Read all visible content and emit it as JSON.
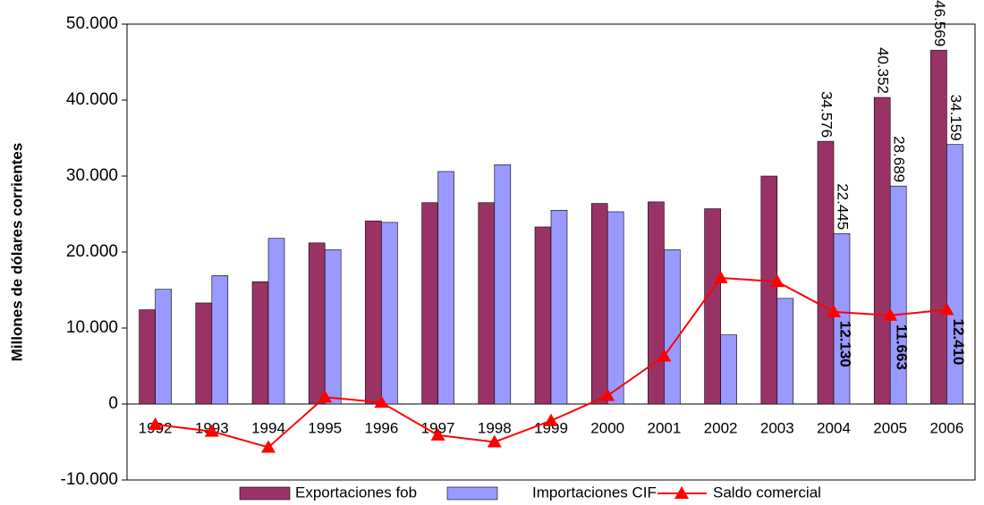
{
  "chart_data": {
    "type": "bar",
    "y_axis_label": "Millones de dólares corrientes",
    "categories": [
      "1992",
      "1993",
      "1994",
      "1995",
      "1996",
      "1997",
      "1998",
      "1999",
      "2000",
      "2001",
      "2002",
      "2003",
      "2004",
      "2005",
      "2006"
    ],
    "ylim": [
      -10000,
      50000
    ],
    "yticks": [
      {
        "value": -10000,
        "label": "-10.000"
      },
      0,
      {
        "value": 10000,
        "label": "10.000"
      },
      {
        "value": 20000,
        "label": "20.000"
      },
      {
        "value": 30000,
        "label": "30.000"
      },
      {
        "value": 40000,
        "label": "40.000"
      },
      {
        "value": 50000,
        "label": "50.000"
      }
    ],
    "series": [
      {
        "name": "Exportaciones fob",
        "type": "bar",
        "color": "#993366",
        "values": [
          12400,
          13300,
          16100,
          21200,
          24100,
          26500,
          26500,
          23300,
          26400,
          26600,
          25700,
          30000,
          34576,
          40352,
          46569
        ],
        "value_labels": [
          null,
          null,
          null,
          null,
          null,
          null,
          null,
          null,
          null,
          null,
          null,
          null,
          "34.576",
          "40.352",
          "46.569"
        ]
      },
      {
        "name": "Importaciones CIF",
        "type": "bar",
        "color": "#9999ff",
        "values": [
          15100,
          16900,
          21800,
          20300,
          23900,
          30600,
          31500,
          25500,
          25300,
          20300,
          9100,
          13900,
          22445,
          28689,
          34159
        ],
        "value_labels": [
          null,
          null,
          null,
          null,
          null,
          null,
          null,
          null,
          null,
          null,
          null,
          null,
          "22.445",
          "28.689",
          "34.159"
        ]
      },
      {
        "name": "Saldo comercial",
        "type": "line",
        "color": "#ff0000",
        "values": [
          -2700,
          -3600,
          -5700,
          900,
          200,
          -4100,
          -5000,
          -2200,
          1100,
          6300,
          16600,
          16100,
          12130,
          11663,
          12410
        ],
        "value_labels": [
          null,
          null,
          null,
          null,
          null,
          null,
          null,
          null,
          null,
          null,
          null,
          null,
          "12.130",
          "11.663",
          "12.410"
        ]
      }
    ]
  }
}
